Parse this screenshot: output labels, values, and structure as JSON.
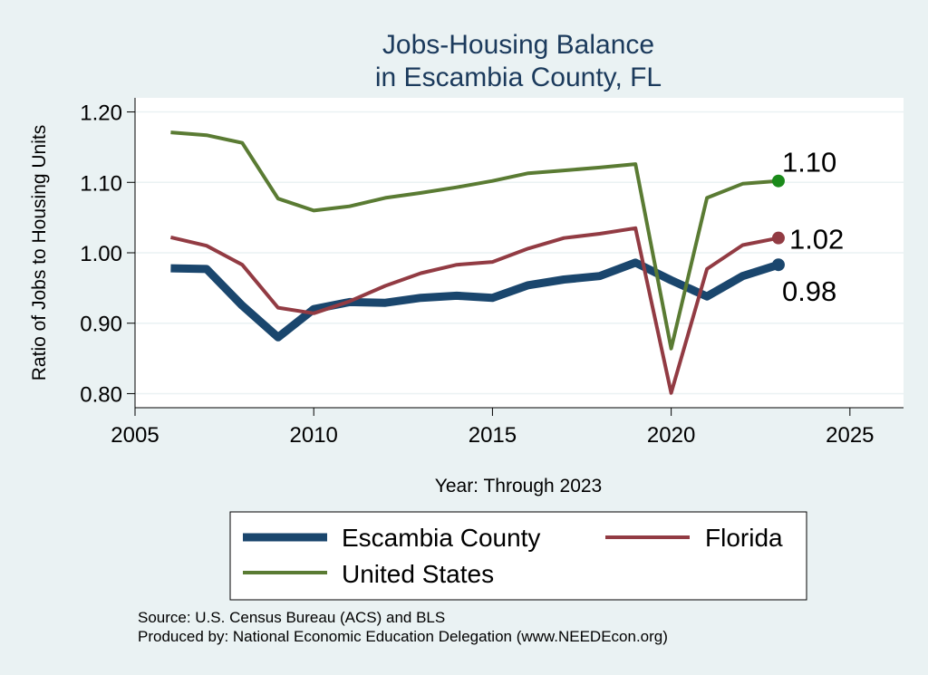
{
  "chart_data": {
    "type": "line",
    "title": [
      "Jobs-Housing Balance",
      "in Escambia County, FL"
    ],
    "xlabel": "Year: Through 2023",
    "ylabel": "Ratio of Jobs to Housing Units",
    "xlim": [
      2005,
      2026.5
    ],
    "ylim": [
      0.78,
      1.22
    ],
    "x_ticks": [
      2005,
      2010,
      2015,
      2020,
      2025
    ],
    "x_tick_labels": [
      "2005",
      "2010",
      "2015",
      "2020",
      "2025"
    ],
    "y_ticks": [
      0.8,
      0.9,
      1.0,
      1.1,
      1.2
    ],
    "y_tick_labels": [
      "0.80",
      "0.90",
      "1.00",
      "1.10",
      "1.20"
    ],
    "grid": "horizontal",
    "x": [
      2006,
      2007,
      2008,
      2009,
      2010,
      2011,
      2012,
      2013,
      2014,
      2015,
      2016,
      2017,
      2018,
      2019,
      2020,
      2021,
      2022,
      2023
    ],
    "series": [
      {
        "name": "Escambia County",
        "color": "#1a466d",
        "values": [
          0.978,
          0.977,
          0.925,
          0.88,
          0.92,
          0.93,
          0.929,
          0.936,
          0.939,
          0.936,
          0.954,
          0.962,
          0.967,
          0.986,
          0.961,
          0.938,
          0.967,
          0.983
        ],
        "end_label": "0.98"
      },
      {
        "name": "Florida",
        "color": "#923b43",
        "values": [
          1.022,
          1.01,
          0.983,
          0.922,
          0.914,
          0.931,
          0.953,
          0.971,
          0.983,
          0.987,
          1.006,
          1.021,
          1.027,
          1.035,
          0.801,
          0.977,
          1.011,
          1.021
        ],
        "end_label": "1.02"
      },
      {
        "name": "United States",
        "color": "#5a7b33",
        "values": [
          1.171,
          1.167,
          1.156,
          1.077,
          1.06,
          1.066,
          1.078,
          1.085,
          1.093,
          1.102,
          1.113,
          1.117,
          1.121,
          1.126,
          0.864,
          1.078,
          1.098,
          1.102
        ],
        "end_label": "1.10",
        "marker_color": "#1a8a1a"
      }
    ],
    "legend": {
      "position": "bottom",
      "entries": [
        "Escambia County",
        "Florida",
        "United States"
      ]
    }
  },
  "footer": {
    "source": "Source: U.S. Census Bureau (ACS) and BLS",
    "produced_by": "Produced by: National Economic Education Delegation (www.NEEDEcon.org)"
  }
}
